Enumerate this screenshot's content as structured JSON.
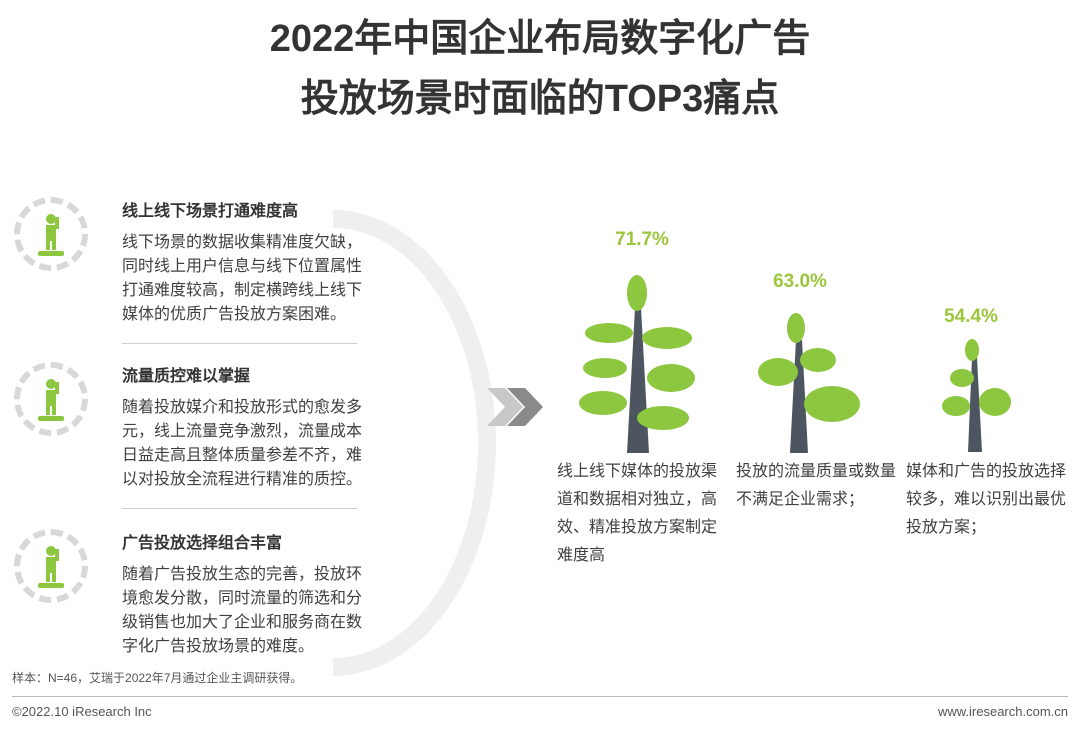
{
  "title": {
    "line1": "2022年中国企业布局数字化广告",
    "line2": "投放场景时面临的TOP3痛点"
  },
  "items": [
    {
      "title": "线上线下场景打通难度高",
      "body": "线下场景的数据收集精准度欠缺，同时线上用户信息与线下位置属性打通难度较高，制定横跨线上线下媒体的优质广告投放方案困难。"
    },
    {
      "title": "流量质控难以掌握",
      "body": "随着投放媒介和投放形式的愈发多元，线上流量竞争激烈，流量成本日益走高且整体质量参差不齐，难以对投放全流程进行精准的质控。"
    },
    {
      "title": "广告投放选择组合丰富",
      "body": "随着广告投放生态的完善，投放环境愈发分散，同时流量的筛选和分级销售也加大了企业和服务商在数字化广告投放场景的难度。"
    }
  ],
  "chart_data": {
    "type": "bar",
    "title": "2022年中国企业布局数字化广告投放场景时面临的TOP3痛点",
    "categories": [
      "线上线下媒体的投放渠道和数据相对独立，高效、精准投放方案制定难度高",
      "投放的流量质量或数量不满足企业需求；",
      "媒体和广告的投放选择较多，难以识别出最优投放方案；"
    ],
    "values": [
      71.7,
      63.0,
      54.4
    ],
    "labels": [
      "71.7%",
      "63.0%",
      "54.4%"
    ]
  },
  "colors": {
    "leaf": "#8dc63f",
    "trunk": "#4d5561",
    "accent": "#9cc63b"
  },
  "note": "样本：N=46，艾瑞于2022年7月通过企业主调研获得。",
  "footer": {
    "left": "©2022.10 iResearch Inc",
    "right": "www.iresearch.com.cn"
  }
}
